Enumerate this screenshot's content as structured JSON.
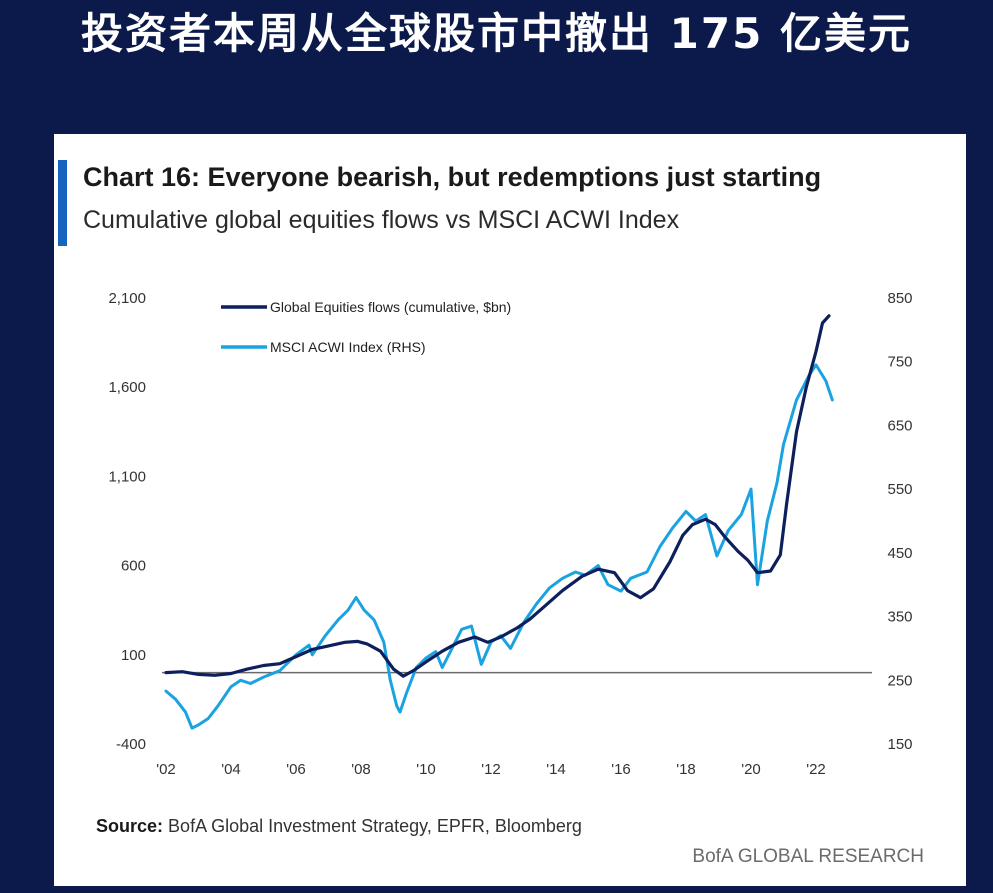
{
  "headline": "投资者本周从全球股市中撤出 175 亿美元",
  "colors": {
    "background": "#0b1a4a",
    "accent": "#1565c0",
    "flows_line": "#0d1f5c",
    "acwi_line": "#1aa3e0",
    "zero_line": "#6a6a6a"
  },
  "chart_data": {
    "type": "line",
    "title": "Chart 16: Everyone bearish, but redemptions just starting",
    "subtitle": "Cumulative global equities flows vs MSCI ACWI Index",
    "source_label": "Source:",
    "source_text": "BofA Global Investment Strategy, EPFR, Bloomberg",
    "brand": "BofA GLOBAL RESEARCH",
    "x_ticks": [
      "'02",
      "'04",
      "'06",
      "'08",
      "'10",
      "'12",
      "'14",
      "'16",
      "'18",
      "'20",
      "'22"
    ],
    "xlim": [
      2002,
      2022.8
    ],
    "y_left_ticks": [
      "2,100",
      "1,600",
      "1,100",
      "600",
      "100",
      "-400"
    ],
    "y_left_lim": [
      -400,
      2100
    ],
    "y_right_ticks": [
      "850",
      "750",
      "650",
      "550",
      "450",
      "350",
      "250",
      "150"
    ],
    "y_right_lim": [
      150,
      850
    ],
    "reference_line": 0,
    "legend": [
      {
        "name": "Global Equities flows (cumulative, $bn)",
        "axis": "left"
      },
      {
        "name": "MSCI ACWI Index (RHS)",
        "axis": "right"
      }
    ],
    "series": [
      {
        "name": "Global Equities flows (cumulative, $bn)",
        "axis": "left",
        "points": [
          [
            2002.0,
            0
          ],
          [
            2002.5,
            5
          ],
          [
            2003.0,
            -10
          ],
          [
            2003.5,
            -15
          ],
          [
            2004.0,
            -5
          ],
          [
            2004.5,
            20
          ],
          [
            2005.0,
            40
          ],
          [
            2005.5,
            50
          ],
          [
            2006.0,
            90
          ],
          [
            2006.5,
            130
          ],
          [
            2007.0,
            150
          ],
          [
            2007.5,
            170
          ],
          [
            2007.9,
            175
          ],
          [
            2008.2,
            160
          ],
          [
            2008.6,
            120
          ],
          [
            2009.0,
            20
          ],
          [
            2009.3,
            -20
          ],
          [
            2009.6,
            10
          ],
          [
            2010.0,
            60
          ],
          [
            2010.5,
            120
          ],
          [
            2011.0,
            170
          ],
          [
            2011.5,
            200
          ],
          [
            2011.9,
            170
          ],
          [
            2012.3,
            200
          ],
          [
            2012.8,
            250
          ],
          [
            2013.2,
            300
          ],
          [
            2013.7,
            380
          ],
          [
            2014.2,
            460
          ],
          [
            2014.8,
            540
          ],
          [
            2015.3,
            580
          ],
          [
            2015.8,
            560
          ],
          [
            2016.2,
            460
          ],
          [
            2016.6,
            420
          ],
          [
            2017.0,
            470
          ],
          [
            2017.5,
            620
          ],
          [
            2017.9,
            770
          ],
          [
            2018.2,
            830
          ],
          [
            2018.6,
            860
          ],
          [
            2018.9,
            830
          ],
          [
            2019.2,
            760
          ],
          [
            2019.6,
            680
          ],
          [
            2019.9,
            630
          ],
          [
            2020.2,
            560
          ],
          [
            2020.6,
            570
          ],
          [
            2020.9,
            660
          ],
          [
            2021.1,
            950
          ],
          [
            2021.4,
            1350
          ],
          [
            2021.7,
            1600
          ],
          [
            2022.0,
            1800
          ],
          [
            2022.2,
            1960
          ],
          [
            2022.4,
            2000
          ]
        ]
      },
      {
        "name": "MSCI ACWI Index (RHS)",
        "axis": "right",
        "points": [
          [
            2002.0,
            233
          ],
          [
            2002.3,
            220
          ],
          [
            2002.6,
            200
          ],
          [
            2002.8,
            175
          ],
          [
            2003.0,
            180
          ],
          [
            2003.3,
            190
          ],
          [
            2003.6,
            210
          ],
          [
            2004.0,
            240
          ],
          [
            2004.3,
            250
          ],
          [
            2004.6,
            245
          ],
          [
            2005.0,
            255
          ],
          [
            2005.5,
            265
          ],
          [
            2006.0,
            290
          ],
          [
            2006.4,
            305
          ],
          [
            2006.5,
            290
          ],
          [
            2006.9,
            320
          ],
          [
            2007.3,
            345
          ],
          [
            2007.6,
            360
          ],
          [
            2007.85,
            380
          ],
          [
            2008.1,
            360
          ],
          [
            2008.4,
            345
          ],
          [
            2008.7,
            310
          ],
          [
            2008.9,
            250
          ],
          [
            2009.1,
            210
          ],
          [
            2009.2,
            200
          ],
          [
            2009.4,
            230
          ],
          [
            2009.7,
            270
          ],
          [
            2010.0,
            285
          ],
          [
            2010.3,
            295
          ],
          [
            2010.5,
            270
          ],
          [
            2010.8,
            300
          ],
          [
            2011.1,
            330
          ],
          [
            2011.4,
            335
          ],
          [
            2011.7,
            275
          ],
          [
            2012.0,
            310
          ],
          [
            2012.3,
            320
          ],
          [
            2012.6,
            300
          ],
          [
            2013.0,
            340
          ],
          [
            2013.4,
            370
          ],
          [
            2013.8,
            395
          ],
          [
            2014.2,
            410
          ],
          [
            2014.6,
            420
          ],
          [
            2014.9,
            415
          ],
          [
            2015.3,
            430
          ],
          [
            2015.6,
            400
          ],
          [
            2016.0,
            390
          ],
          [
            2016.3,
            410
          ],
          [
            2016.8,
            420
          ],
          [
            2017.2,
            460
          ],
          [
            2017.6,
            490
          ],
          [
            2018.0,
            515
          ],
          [
            2018.3,
            500
          ],
          [
            2018.6,
            510
          ],
          [
            2018.95,
            445
          ],
          [
            2019.3,
            485
          ],
          [
            2019.7,
            510
          ],
          [
            2020.0,
            550
          ],
          [
            2020.2,
            400
          ],
          [
            2020.5,
            500
          ],
          [
            2020.8,
            560
          ],
          [
            2021.0,
            620
          ],
          [
            2021.4,
            690
          ],
          [
            2021.8,
            730
          ],
          [
            2022.0,
            745
          ],
          [
            2022.3,
            720
          ],
          [
            2022.5,
            690
          ]
        ]
      }
    ]
  }
}
